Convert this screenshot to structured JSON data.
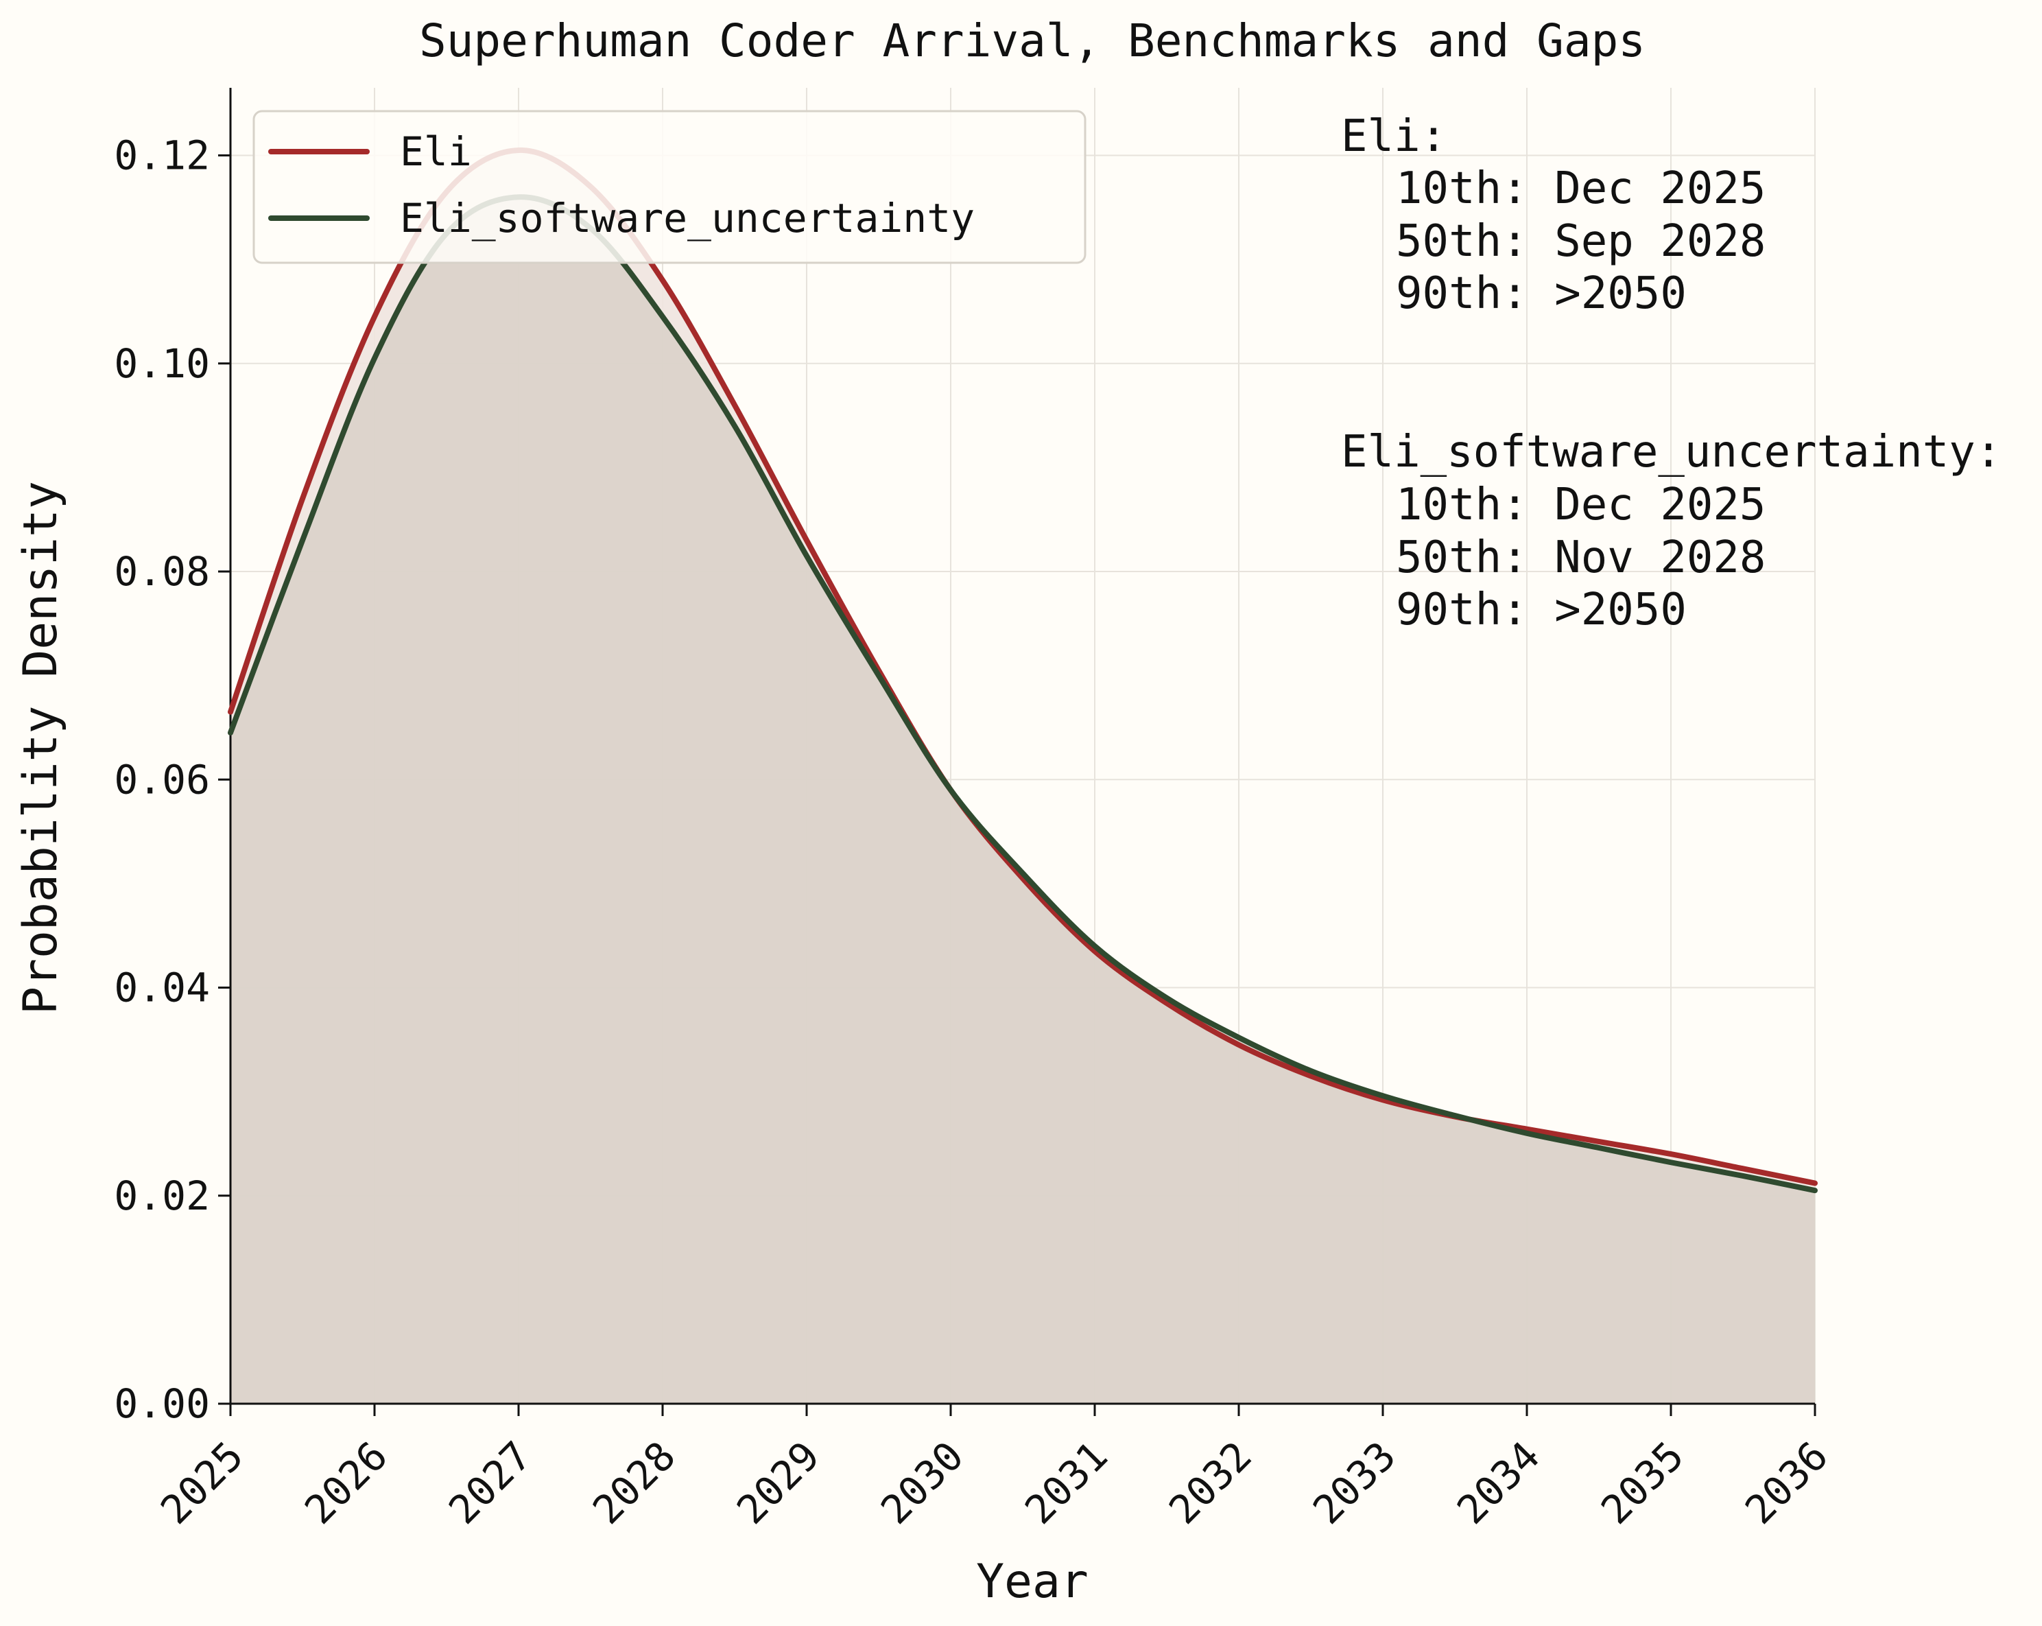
{
  "chart_data": {
    "type": "line",
    "title": "Superhuman Coder Arrival, Benchmarks and Gaps",
    "xlabel": "Year",
    "ylabel": "Probability Density",
    "xlim": [
      2025,
      2036
    ],
    "ylim": [
      0,
      0.1265
    ],
    "x_ticks": [
      "2025",
      "2026",
      "2027",
      "2028",
      "2029",
      "2030",
      "2031",
      "2032",
      "2033",
      "2034",
      "2035",
      "2036"
    ],
    "y_ticks": [
      "0.00",
      "0.02",
      "0.04",
      "0.06",
      "0.08",
      "0.10",
      "0.12"
    ],
    "grid": true,
    "legend_position": "upper-left",
    "series": [
      {
        "name": "Eli",
        "color": "#a52a2a",
        "fill": "#efe4df",
        "x": [
          2025,
          2025.5,
          2026,
          2026.5,
          2027,
          2027.5,
          2028,
          2028.5,
          2029,
          2029.5,
          2030,
          2030.5,
          2031,
          2031.5,
          2032,
          2032.5,
          2033,
          2033.5,
          2034,
          2034.5,
          2035,
          2035.5,
          2036
        ],
        "y": [
          0.0665,
          0.087,
          0.1045,
          0.1165,
          0.1205,
          0.117,
          0.108,
          0.096,
          0.083,
          0.0705,
          0.059,
          0.0505,
          0.0435,
          0.0385,
          0.0345,
          0.0315,
          0.0292,
          0.0276,
          0.0264,
          0.0252,
          0.024,
          0.0226,
          0.0212
        ]
      },
      {
        "name": "Eli_software_uncertainty",
        "color": "#2f4a2f",
        "fill": "#d8d0c7",
        "x": [
          2025,
          2025.5,
          2026,
          2026.5,
          2027,
          2027.5,
          2028,
          2028.5,
          2029,
          2029.5,
          2030,
          2030.5,
          2031,
          2031.5,
          2032,
          2032.5,
          2033,
          2033.5,
          2034,
          2034.5,
          2035,
          2035.5,
          2036
        ],
        "y": [
          0.0645,
          0.083,
          0.1005,
          0.1125,
          0.116,
          0.113,
          0.1045,
          0.094,
          0.0815,
          0.07,
          0.059,
          0.051,
          0.044,
          0.039,
          0.0352,
          0.032,
          0.0296,
          0.0277,
          0.026,
          0.0246,
          0.0232,
          0.0219,
          0.0205
        ]
      }
    ]
  },
  "annotation": {
    "eli": {
      "header": "Eli:",
      "lines": [
        "10th: Dec 2025",
        "50th: Sep 2028",
        "90th: >2050"
      ]
    },
    "eli_software_uncertainty": {
      "header": "Eli_software_uncertainty:",
      "lines": [
        "10th: Dec 2025",
        "50th: Nov 2028",
        "90th: >2050"
      ]
    }
  }
}
